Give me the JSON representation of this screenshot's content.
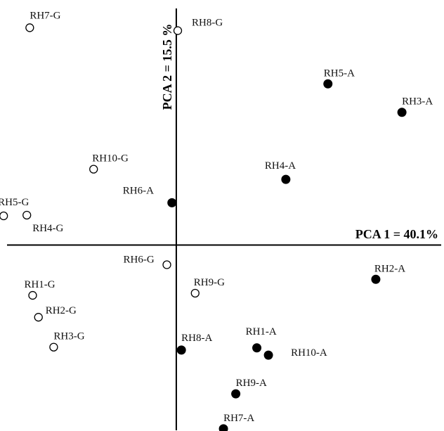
{
  "chart_data": {
    "type": "scatter",
    "title": "",
    "xlabel": "PCA 1 = 40.1%",
    "ylabel": "PCA 2 = 15.5 %",
    "grid": false,
    "legend": "none",
    "xlim": [
      -243,
      369
    ],
    "ylim": [
      -255,
      336
    ],
    "colors": {
      "filled": "#000000",
      "open": "#ffffff",
      "stroke": "#000000"
    },
    "series": [
      {
        "marker": "open-circle",
        "points": [
          {
            "label": "RH7-G",
            "x": -202,
            "y": 298
          },
          {
            "label": "RH8-G",
            "x": 2,
            "y": 294
          },
          {
            "label": "RH10-G",
            "x": -114,
            "y": 104
          },
          {
            "label": "RH5-G",
            "x": -238,
            "y": 40
          },
          {
            "label": "RH4-G",
            "x": -206,
            "y": 41
          },
          {
            "label": "RH6-G",
            "x": -13,
            "y": -27
          },
          {
            "label": "RH9-G",
            "x": 26,
            "y": -66
          },
          {
            "label": "RH1-G",
            "x": -198,
            "y": -69
          },
          {
            "label": "RH2-G",
            "x": -190,
            "y": -99
          },
          {
            "label": "RH3-G",
            "x": -169,
            "y": -140
          }
        ]
      },
      {
        "marker": "filled-circle",
        "points": [
          {
            "label": "RH5-A",
            "x": 209,
            "y": 221
          },
          {
            "label": "RH3-A",
            "x": 311,
            "y": 182
          },
          {
            "label": "RH4-A",
            "x": 151,
            "y": 90
          },
          {
            "label": "RH6-A",
            "x": -6,
            "y": 58
          },
          {
            "label": "RH2-A",
            "x": 275,
            "y": -47
          },
          {
            "label": "RH1-A",
            "x": 111,
            "y": -141
          },
          {
            "label": "RH10-A",
            "x": 127,
            "y": -151
          },
          {
            "label": "RH8-A",
            "x": 7,
            "y": -144
          },
          {
            "label": "RH9-A",
            "x": 82,
            "y": -204
          },
          {
            "label": "RH7-A",
            "x": 65,
            "y": -252
          }
        ]
      }
    ]
  }
}
